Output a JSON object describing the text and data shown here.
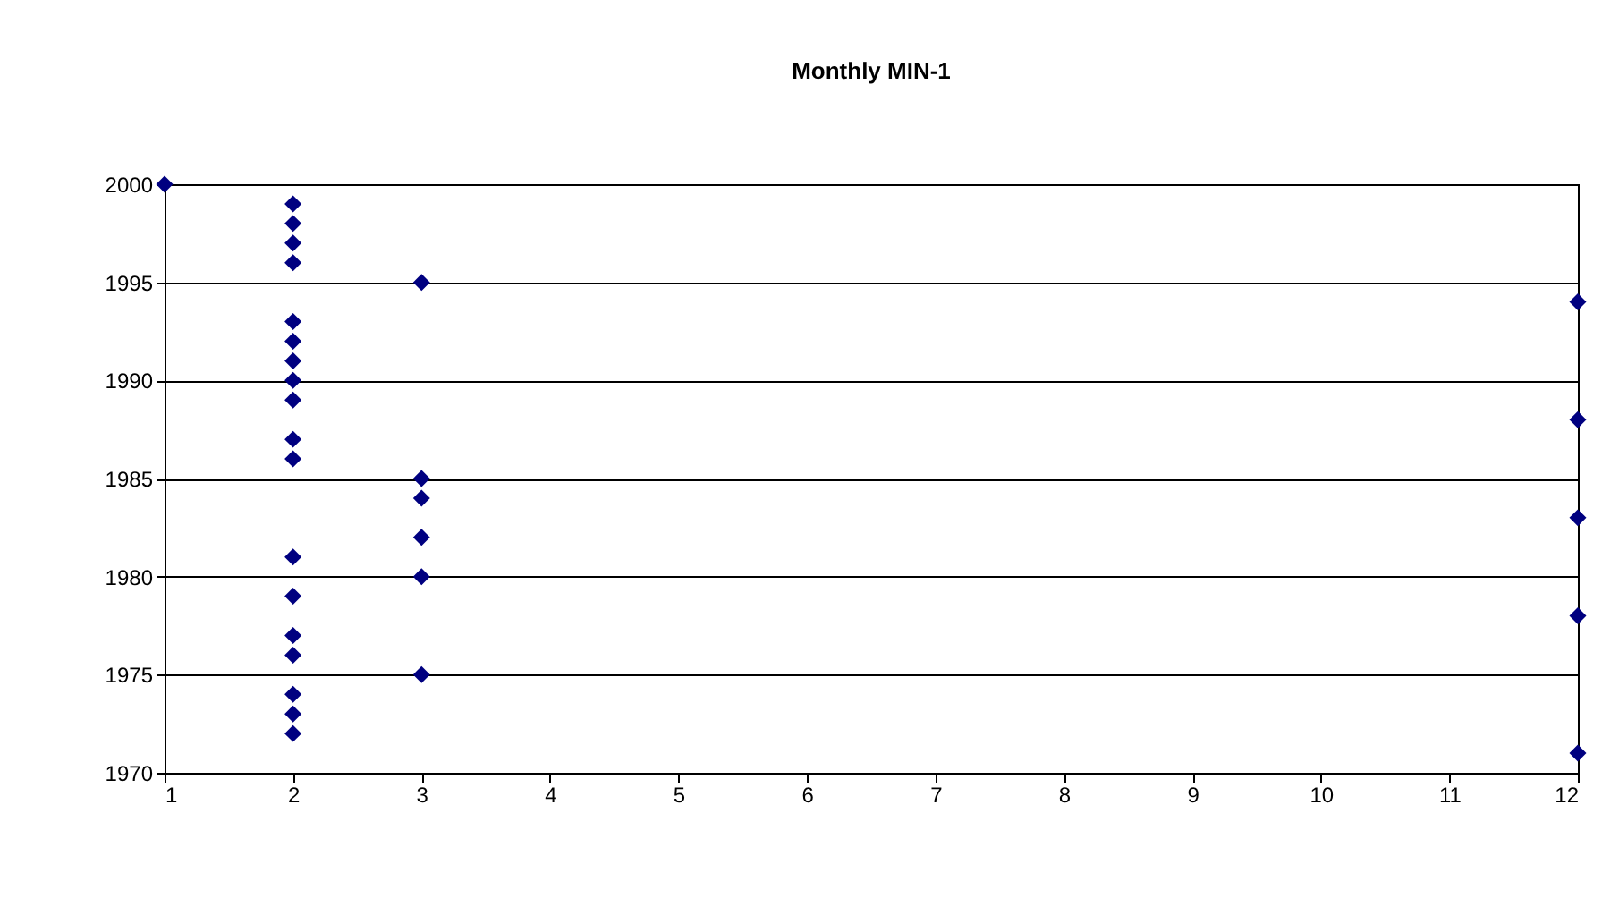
{
  "chart_data": {
    "type": "scatter",
    "title": "Monthly MIN-1",
    "series": [
      {
        "color": "#000080",
        "x": [
          1,
          2,
          2,
          2,
          2,
          2,
          2,
          2,
          2,
          2,
          2,
          2,
          2,
          2,
          2,
          2,
          2,
          2,
          2,
          3,
          3,
          3,
          3,
          3,
          3,
          12,
          12,
          12,
          12,
          12
        ],
        "values": [
          2000,
          1999,
          1998,
          1997,
          1996,
          1993,
          1992,
          1991,
          1990,
          1989,
          1987,
          1986,
          1981,
          1979,
          1977,
          1976,
          1974,
          1973,
          1972,
          1995,
          1985,
          1984,
          1982,
          1980,
          1975,
          1994,
          1988,
          1983,
          1978,
          1971
        ]
      }
    ],
    "xlim": [
      1,
      12
    ],
    "xticks": [
      1,
      2,
      3,
      4,
      5,
      6,
      7,
      8,
      9,
      10,
      11,
      12
    ],
    "ylim": [
      1970,
      2000
    ],
    "yticks": [
      1970,
      1975,
      1980,
      1985,
      1990,
      1995,
      2000
    ],
    "grid": "y",
    "marker": "diamond",
    "legend": false
  }
}
